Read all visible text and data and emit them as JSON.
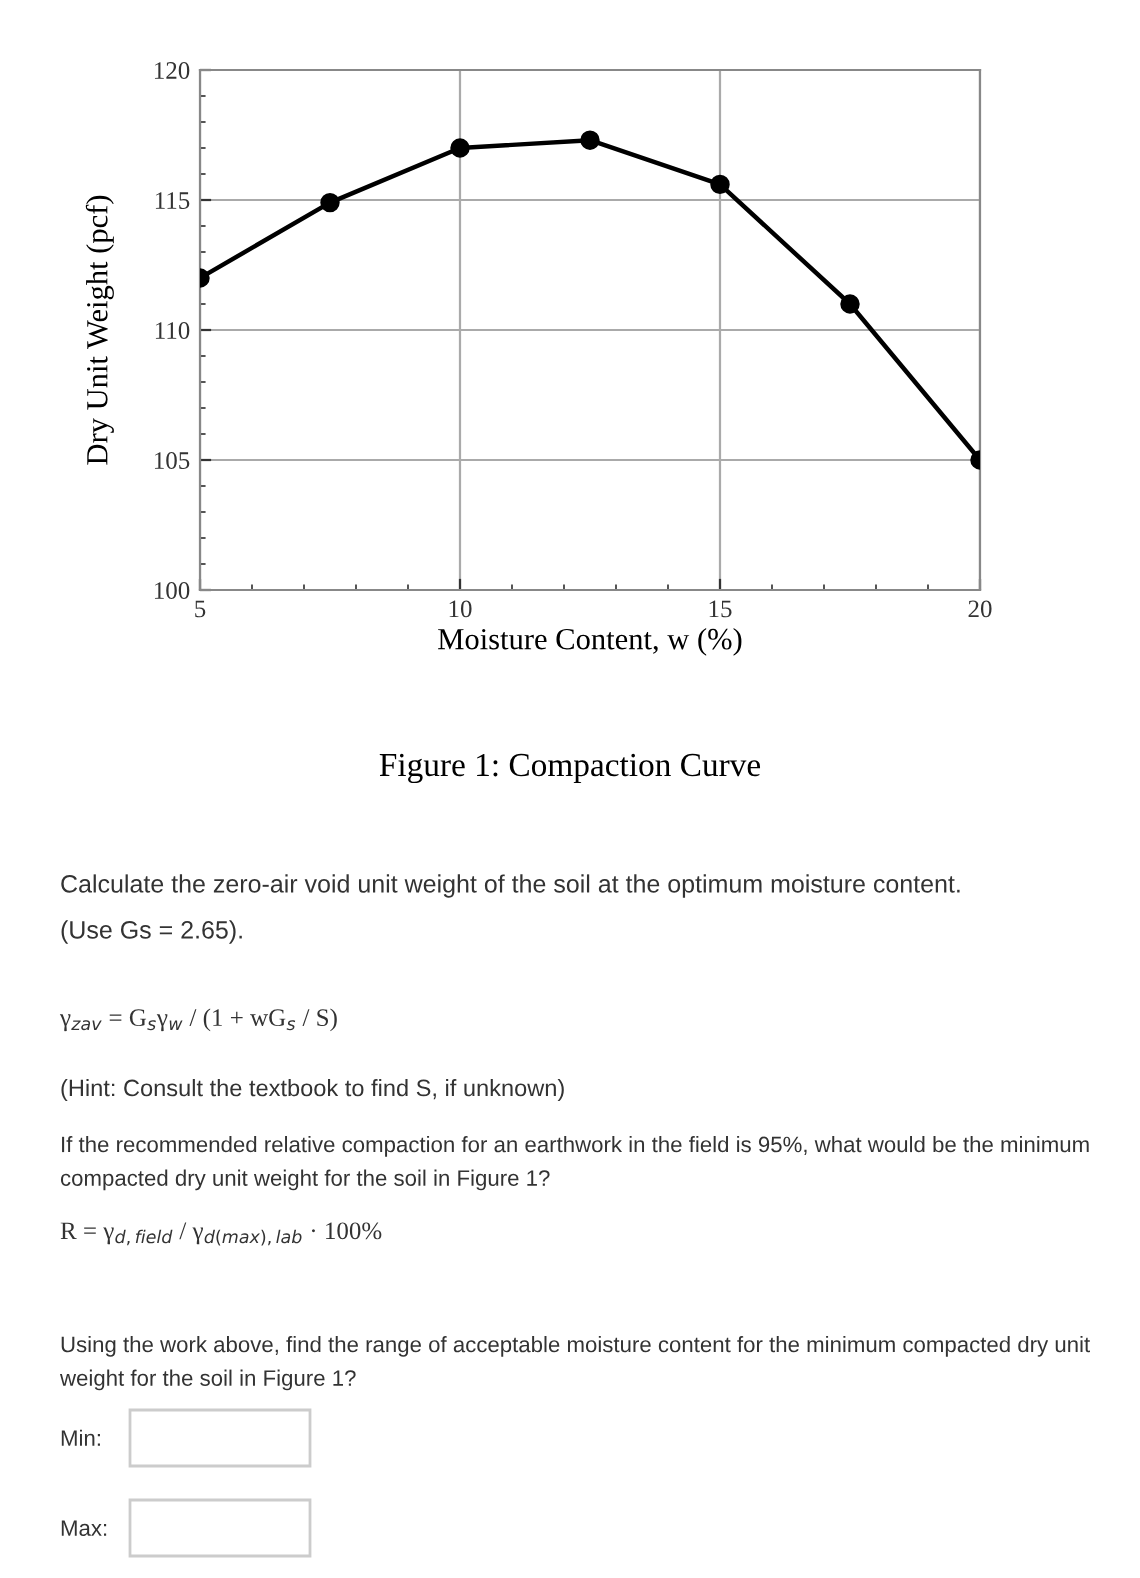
{
  "chart_data": {
    "type": "line",
    "title": "Figure 1: Compaction Curve",
    "xlabel": "Moisture Content, w (%)",
    "ylabel": "Dry Unit Weight (pcf)",
    "x": [
      5,
      7.5,
      10,
      12.5,
      15,
      17.5,
      20
    ],
    "series": [
      {
        "color": "#000000",
        "values": [
          112,
          114.9,
          117,
          117.3,
          115.6,
          111,
          105
        ]
      }
    ],
    "xlim": [
      5,
      20
    ],
    "ylim": [
      100,
      120
    ],
    "xticks": [
      5,
      10,
      15,
      20
    ],
    "yticks": [
      100,
      105,
      110,
      115,
      120
    ],
    "grid": true,
    "marker": "circle",
    "line_style": "solid",
    "annotations": [
      "Calculate the zero-air void unit weight of the soil at the optimum moisture content.",
      "(Use Gs = 2.65).",
      "γ$_{zav}$ = G$_{s}$γ$_{w}$ / (1 + wG$_{s}$ / S)",
      "(Hint: Consult the textbook to find S, if unknown)",
      "If the recommended relative compaction for an earthwork in the field is 95%, what would be the minimum compacted dry unit weight for the soil in Figure 1?",
      "R = γ$_{d,field}$ / γ$_{d(max),lab}$ · 100%",
      "Using the work above, find the range of acceptable moisture content for the minimum compacted dry unit weight for the soil in Figure 1?",
      "Min:",
      "Max:"
    ]
  }
}
